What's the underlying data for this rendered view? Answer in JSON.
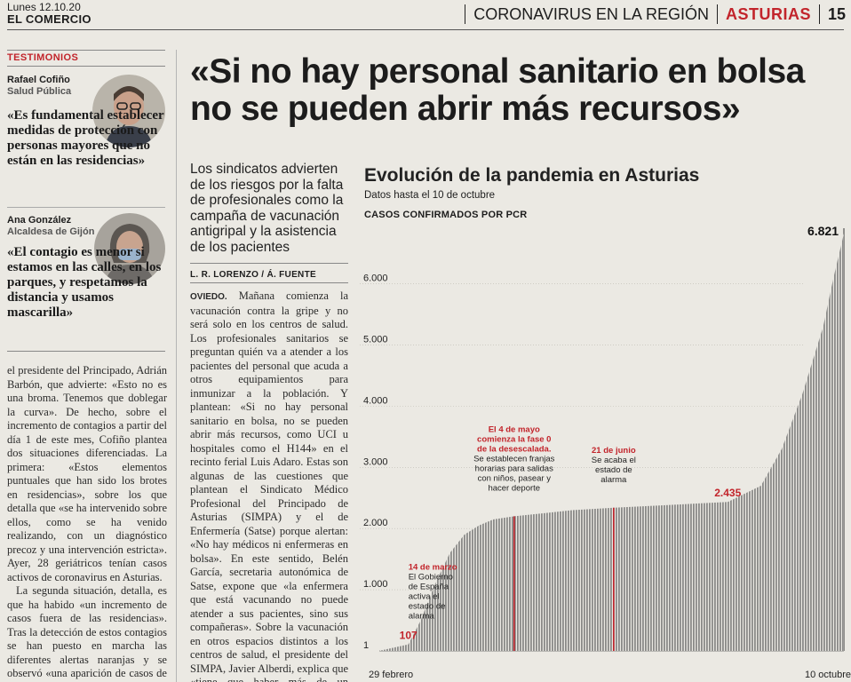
{
  "header": {
    "date": "Lunes 12.10.20",
    "publication": "EL COMERCIO",
    "section": "CORONAVIRUS EN LA REGIÓN",
    "region": "ASTURIAS",
    "page": "15"
  },
  "testimonials": {
    "kicker": "TESTIMONIOS",
    "items": [
      {
        "name": "Rafael Cofiño",
        "role": "Salud Pública",
        "quote": "«Es fundamental establecer medidas de protección con personas mayores que no están en las residencias»"
      },
      {
        "name": "Ana González",
        "role": "Alcaldesa de Gijón",
        "quote": "«El contagio es menor si estamos en las calles, en los parques, y respetamos la distancia y usamos mascarilla»"
      }
    ]
  },
  "left_column": {
    "paragraphs": [
      "el presidente del Principado, Adrián Barbón, que advierte: «Esto no es una broma. Tenemos que doblegar la curva». De hecho, sobre el incremento de contagios a partir del día 1 de este mes, Cofiño plantea dos situaciones diferenciadas. La primera: «Estos elementos puntuales que han sido los brotes en residencias», sobre los que detalla que «se ha intervenido sobre ellos, como se ha venido realizando, con un diagnóstico precoz y una intervención estricta». Ayer, 28 geriátricos tenían casos activos de coronavirus en Asturias.",
      "La segunda situación, detalla, es que ha habido «un incremento de casos fuera de las residencias». Tras la detección de estos contagios se han puesto en marcha las diferentes alertas naranjas y se observó «una aparición de casos de forma difusa en diferentes ele-"
    ]
  },
  "article": {
    "headline": "«Si no hay personal sanitario en bolsa no se pueden abrir más recursos»",
    "lead": "Los sindicatos advierten de los riesgos por la falta de profesionales como la campaña de vacunación antigripal y la asistencia de los pacientes",
    "byline": "L. R. LORENZO / Á. FUENTE",
    "dateline": "OVIEDO.",
    "body": " Mañana comienza la vacunación contra la gripe y no será solo en los centros de salud. Los profesionales sanitarios se preguntan quién va a atender a los pacientes del personal que acuda a otros equipamientos para inmunizar a la población. Y plantean: «Si no hay personal sanitario en bolsa, no se pueden abrir más recursos, como UCI u hospitales como el H144» en el recinto ferial Luis Adaro. Estas son algunas de las cuestiones que plantean el Sindicato Médico Profesional del Principado de Asturias (SIMPA) y el de Enfermería (Satse) porque alertan: «No hay médicos ni enfermeras en bolsa». En este sentido, Belén García, secretaria autonómica de Satse, expone que «la enfermera que está vacunando no puede atender a sus pacientes, sino sus compañeras». Sobre la vacunación en otros espacios distintos a los centros de salud, el presidente del SIMPA, Javier Alberdi, explica que «tiene que haber más de un médico, por ejemplo, ante posibles reacciones alérgicas a una"
  },
  "chart_data": {
    "type": "bar",
    "title": "Evolución de la pandemia en Asturias",
    "subtitle": "Datos hasta el 10 de octubre",
    "measure": "CASOS CONFIRMADOS POR PCR",
    "x_start_label": "29 febrero",
    "x_end_label": "10 octubre",
    "ylim": [
      0,
      6821
    ],
    "y_ticks": [
      "1",
      "1.000",
      "2.000",
      "3.000",
      "4.000",
      "5.000",
      "6.000"
    ],
    "y_tick_values": [
      1,
      1000,
      2000,
      3000,
      4000,
      5000,
      6000
    ],
    "bar_color": "#8a8a88",
    "marker_color": "#c2242b",
    "curve": {
      "x": [
        "2020-02-29",
        "2020-03-14",
        "2020-03-20",
        "2020-03-27",
        "2020-04-03",
        "2020-04-10",
        "2020-04-17",
        "2020-04-24",
        "2020-05-04",
        "2020-05-18",
        "2020-06-01",
        "2020-06-21",
        "2020-07-15",
        "2020-08-01",
        "2020-08-15",
        "2020-08-31",
        "2020-09-10",
        "2020-09-20",
        "2020-09-30",
        "2020-10-05",
        "2020-10-10"
      ],
      "y": [
        1,
        107,
        500,
        1100,
        1600,
        1900,
        2050,
        2150,
        2200,
        2250,
        2300,
        2340,
        2380,
        2410,
        2435,
        2700,
        3300,
        4200,
        5300,
        6100,
        6821
      ]
    },
    "value_labels": [
      {
        "date": "2020-03-14",
        "text": "107"
      },
      {
        "date": "2020-08-15",
        "text": "2.435"
      },
      {
        "date": "2020-10-10",
        "text": "6.821"
      }
    ],
    "annotations": [
      {
        "date": "2020-03-14",
        "head": "14 de marzo",
        "text": [
          "El Gobierno",
          "de España",
          "activa el",
          "estado de",
          "alarma"
        ],
        "line": false
      },
      {
        "date": "2020-05-04",
        "head": "El 4 de mayo",
        "head2": "comienza la fase 0",
        "head3": "de la desescalada.",
        "text": [
          "Se establecen franjas",
          "horarias para salidas",
          "con niños, pasear y",
          "hacer deporte"
        ],
        "line": true
      },
      {
        "date": "2020-06-21",
        "head": "21 de junio",
        "text": [
          "Se acaba el",
          "estado de",
          "alarma"
        ],
        "line": true
      }
    ]
  }
}
